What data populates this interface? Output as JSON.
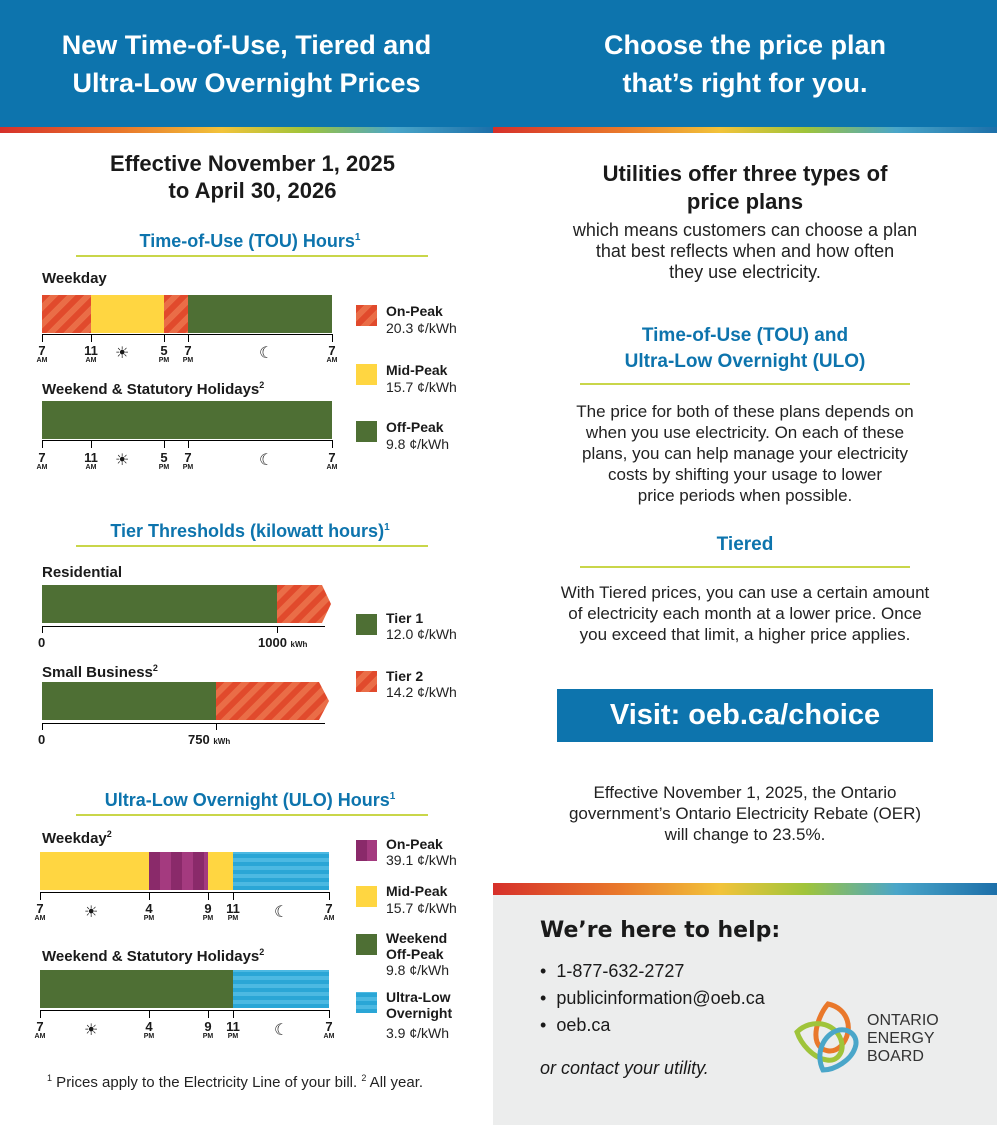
{
  "header": {
    "left_line1": "New Time-of-Use, Tiered and",
    "left_line2": "Ultra-Low Overnight Prices",
    "right_line1": "Choose the price plan",
    "right_line2": "that’s right for you."
  },
  "colors": {
    "header_blue": "#0d74ad",
    "on_peak": "#e14a2c",
    "mid_peak": "#ffd641",
    "off_peak": "#4e6f34",
    "ultra_low": "#2aa6d6",
    "ulo_on_peak": "#8a2a6a",
    "underline": "#c9d64a"
  },
  "effective": {
    "line1": "Effective November 1, 2025",
    "line2": "to April 30, 2026"
  },
  "tou": {
    "title": "Time-of-Use (TOU) Hours",
    "title_sup": "1",
    "weekday_label": "Weekday",
    "weekend_label": "Weekend & Statutory Holidays",
    "weekend_sup": "2",
    "weekday_segments": [
      {
        "period": "On-Peak",
        "start": "7 AM",
        "end": "11 AM"
      },
      {
        "period": "Mid-Peak",
        "start": "11 AM",
        "end": "5 PM"
      },
      {
        "period": "On-Peak",
        "start": "5 PM",
        "end": "7 PM"
      },
      {
        "period": "Off-Peak",
        "start": "7 PM",
        "end": "7 AM"
      }
    ],
    "weekend_segments": [
      {
        "period": "Off-Peak",
        "start": "7 AM",
        "end": "7 AM"
      }
    ],
    "axis": [
      {
        "num": "7",
        "ampm": "AM"
      },
      {
        "num": "11",
        "ampm": "AM"
      },
      {
        "num": "5",
        "ampm": "PM"
      },
      {
        "num": "7",
        "ampm": "PM"
      },
      {
        "num": "7",
        "ampm": "AM"
      }
    ],
    "icons": [
      "sun-icon",
      "moon-icon"
    ],
    "legend": [
      {
        "name": "On-Peak",
        "price": "20.3 ¢/kWh"
      },
      {
        "name": "Mid-Peak",
        "price": "15.7 ¢/kWh"
      },
      {
        "name": "Off-Peak",
        "price": "9.8 ¢/kWh"
      }
    ]
  },
  "tier": {
    "title": "Tier Thresholds (kilowatt hours)",
    "title_sup": "1",
    "residential_label": "Residential",
    "residential_zero": "0",
    "residential_threshold": "1000",
    "residential_unit": "kWh",
    "business_label": "Small Business",
    "business_sup": "2",
    "business_zero": "0",
    "business_threshold": "750",
    "business_unit": "kWh",
    "legend": [
      {
        "name": "Tier 1",
        "price": "12.0 ¢/kWh"
      },
      {
        "name": "Tier 2",
        "price": "14.2 ¢/kWh"
      }
    ]
  },
  "ulo": {
    "title": "Ultra-Low Overnight (ULO) Hours",
    "title_sup": "1",
    "weekday_label": "Weekday",
    "weekday_sup": "2",
    "weekend_label": "Weekend & Statutory Holidays",
    "weekend_sup": "2",
    "weekday_segments": [
      {
        "period": "Mid-Peak",
        "start": "7 AM",
        "end": "4 PM"
      },
      {
        "period": "On-Peak",
        "start": "4 PM",
        "end": "9 PM"
      },
      {
        "period": "Mid-Peak",
        "start": "9 PM",
        "end": "11 PM"
      },
      {
        "period": "Ultra-Low Overnight",
        "start": "11 PM",
        "end": "7 AM"
      }
    ],
    "weekend_segments": [
      {
        "period": "Weekend Off-Peak",
        "start": "7 AM",
        "end": "11 PM"
      },
      {
        "period": "Ultra-Low Overnight",
        "start": "11 PM",
        "end": "7 AM"
      }
    ],
    "axis": [
      {
        "num": "7",
        "ampm": "AM"
      },
      {
        "num": "4",
        "ampm": "PM"
      },
      {
        "num": "9",
        "ampm": "PM"
      },
      {
        "num": "11",
        "ampm": "PM"
      },
      {
        "num": "7",
        "ampm": "AM"
      }
    ],
    "legend": [
      {
        "name": "On-Peak",
        "price": "39.1 ¢/kWh"
      },
      {
        "name": "Mid-Peak",
        "price": "15.7 ¢/kWh"
      },
      {
        "name": "Weekend",
        "name2": "Off-Peak",
        "price": "9.8 ¢/kWh"
      },
      {
        "name": "Ultra-Low",
        "name2": "Overnight",
        "price": "3.9 ¢/kWh"
      }
    ]
  },
  "footnote": {
    "sup1": "1",
    "text1": " Prices apply to the Electricity Line of your bill. ",
    "sup2": "2",
    "text2": " All year."
  },
  "right": {
    "intro_title1": "Utilities offer three types of",
    "intro_title2": "price plans",
    "intro_body1": "which means customers can choose a plan",
    "intro_body2": "that best reflects when and how often",
    "intro_body3": "they use electricity.",
    "tou_title1": "Time-of-Use (TOU) and",
    "tou_title2": "Ultra-Low Overnight (ULO)",
    "tou_body1": "The price for both of these plans depends on",
    "tou_body2": "when you use electricity. On each of these",
    "tou_body3": "plans, you can help manage your electricity",
    "tou_body4": "costs by shifting your usage to lower",
    "tou_body5": "price periods when possible.",
    "tiered_title": "Tiered",
    "tiered_body1": "With Tiered prices, you can use a certain amount",
    "tiered_body2": "of electricity each month at a lower price. Once",
    "tiered_body3": "you exceed that limit, a higher price applies.",
    "visit": "Visit: oeb.ca/choice",
    "oer_body1": "Effective November 1, 2025, the Ontario",
    "oer_body2": "government’s Ontario Electricity Rebate (OER)",
    "oer_body3": "will change to 23.5%."
  },
  "help": {
    "title": "We’re here to help:",
    "items": [
      "1-877-632-2727",
      "publicinformation@oeb.ca",
      "oeb.ca"
    ],
    "contact": "or contact your utility.",
    "logo_line1": "ONTARIO",
    "logo_line2": "ENERGY",
    "logo_line3": "BOARD"
  }
}
